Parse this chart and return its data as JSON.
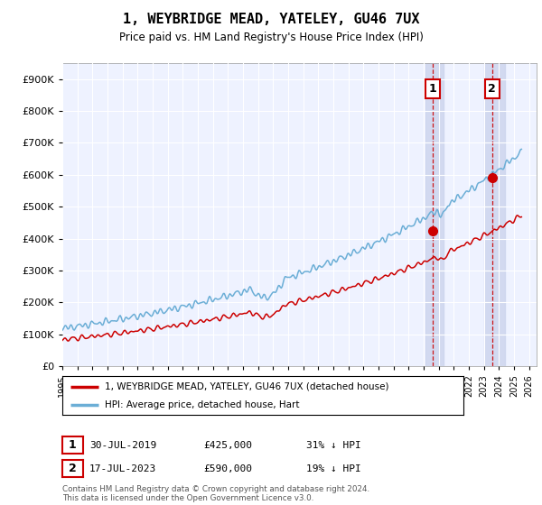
{
  "title": "1, WEYBRIDGE MEAD, YATELEY, GU46 7UX",
  "subtitle": "Price paid vs. HM Land Registry's House Price Index (HPI)",
  "legend_line1": "1, WEYBRIDGE MEAD, YATELEY, GU46 7UX (detached house)",
  "legend_line2": "HPI: Average price, detached house, Hart",
  "annotation1_date": "30-JUL-2019",
  "annotation1_price": "£425,000",
  "annotation1_note": "31% ↓ HPI",
  "annotation2_date": "17-JUL-2023",
  "annotation2_price": "£590,000",
  "annotation2_note": "19% ↓ HPI",
  "footer": "Contains HM Land Registry data © Crown copyright and database right 2024.\nThis data is licensed under the Open Government Licence v3.0.",
  "hpi_color": "#6baed6",
  "price_color": "#cc0000",
  "sale1_x": 2019.58,
  "sale1_y": 425000,
  "sale2_x": 2023.54,
  "sale2_y": 590000,
  "ylim": [
    0,
    950000
  ],
  "xlim_start": 1995,
  "xlim_end": 2026.5,
  "background_plot": "#eef2ff",
  "background_shade1_start": 2019.1,
  "background_shade1_end": 2020.3,
  "background_shade2_start": 2023.0,
  "background_shade2_end": 2024.4,
  "grid_color": "#ffffff",
  "yticks": [
    0,
    100000,
    200000,
    300000,
    400000,
    500000,
    600000,
    700000,
    800000,
    900000
  ]
}
